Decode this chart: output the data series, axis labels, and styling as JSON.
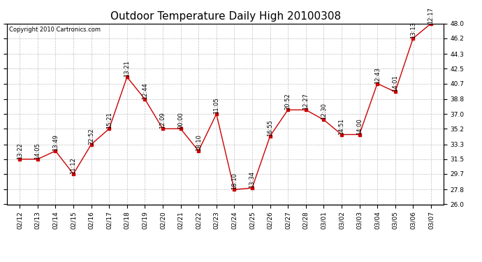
{
  "title": "Outdoor Temperature Daily High 20100308",
  "copyright": "Copyright 2010 Cartronics.com",
  "dates": [
    "02/12",
    "02/13",
    "02/14",
    "02/15",
    "02/16",
    "02/17",
    "02/18",
    "02/19",
    "02/20",
    "02/21",
    "02/22",
    "02/23",
    "02/24",
    "02/25",
    "02/26",
    "02/27",
    "02/28",
    "03/01",
    "03/02",
    "03/03",
    "03/04",
    "03/05",
    "03/06",
    "03/07"
  ],
  "values": [
    31.5,
    31.5,
    32.5,
    29.7,
    33.3,
    35.2,
    41.5,
    38.8,
    35.2,
    35.2,
    32.5,
    37.0,
    27.8,
    28.0,
    34.3,
    37.5,
    37.5,
    36.3,
    34.5,
    34.5,
    40.7,
    39.7,
    46.2,
    48.0
  ],
  "times": [
    "13:22",
    "14:05",
    "13:49",
    "11:12",
    "22:52",
    "15:21",
    "13:21",
    "12:44",
    "12:09",
    "00:00",
    "18:10",
    "11:05",
    "18:10",
    "13:34",
    "16:55",
    "20:52",
    "12:27",
    "12:30",
    "14:51",
    "14:00",
    "12:43",
    "14:01",
    "13:13",
    "12:17"
  ],
  "ylim": [
    26.0,
    48.0
  ],
  "yticks": [
    26.0,
    27.8,
    29.7,
    31.5,
    33.3,
    35.2,
    37.0,
    38.8,
    40.7,
    42.5,
    44.3,
    46.2,
    48.0
  ],
  "line_color": "#cc0000",
  "marker_color": "#cc0000",
  "bg_color": "#ffffff",
  "grid_color": "#b0b0b0",
  "title_fontsize": 11,
  "label_fontsize": 6.5,
  "copyright_fontsize": 6,
  "annotation_fontsize": 6.0
}
